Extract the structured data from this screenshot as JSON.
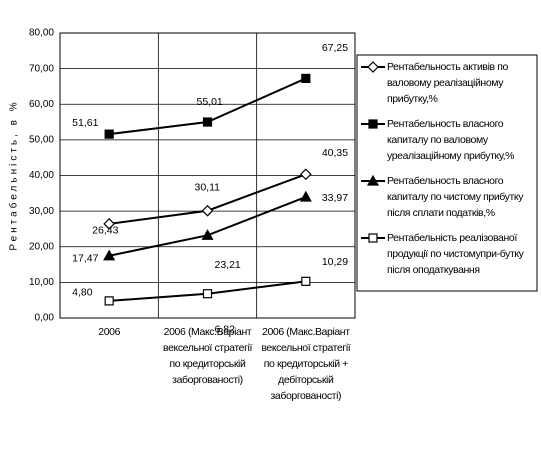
{
  "chart_data": {
    "type": "line",
    "y_axis_label": "Рентабельність, в %",
    "categories": [
      "2006",
      "2006 (Макс.Варіант\nвексельної стратегії\nпо кредиторській\nзаборгованості)",
      "2006 (Макс.Варіант\nвексельної стратегії\nпо кредиторській +\nдебіторській\nзаборгованості)"
    ],
    "series": [
      {
        "name": "Рентабельность активів по валовому реалізаційному прибутку,%",
        "color": "#000000",
        "marker": "diamond-open",
        "values": [
          26.43,
          30.11,
          40.35
        ],
        "value_labels": [
          "26,43",
          "30,11",
          "40,35"
        ]
      },
      {
        "name": "Рентабельность власного капиталу по валовому уреалізаційному прибутку,%",
        "color": "#000000",
        "marker": "square-filled",
        "values": [
          51.61,
          55.01,
          67.25
        ],
        "value_labels": [
          "51,61",
          "55,01",
          "67,25"
        ]
      },
      {
        "name": "Рентабельность власного капиталу по чистому прибутку після сплати податків,%",
        "color": "#000000",
        "marker": "triangle-filled",
        "values": [
          17.47,
          23.21,
          33.97
        ],
        "value_labels": [
          "17,47",
          "23,21",
          "33,97"
        ]
      },
      {
        "name": "Рентабельність реалізованої продукції по чистомупри-бутку після оподаткування",
        "color": "#000000",
        "marker": "square-open",
        "values": [
          4.8,
          6.82,
          10.29
        ],
        "value_labels": [
          "4,80",
          "6,82",
          "10,29"
        ]
      }
    ],
    "ylim": [
      0,
      80
    ],
    "yticks": [
      {
        "value": 0,
        "label": "0,00"
      },
      {
        "value": 10,
        "label": "10,00"
      },
      {
        "value": 20,
        "label": "20,00"
      },
      {
        "value": 30,
        "label": "30,00"
      },
      {
        "value": 40,
        "label": "40,00"
      },
      {
        "value": 50,
        "label": "50,00"
      },
      {
        "value": 60,
        "label": "60,00"
      },
      {
        "value": 70,
        "label": "70,00"
      },
      {
        "value": 80,
        "label": "80,00"
      }
    ],
    "grid": true,
    "legend": "right"
  }
}
